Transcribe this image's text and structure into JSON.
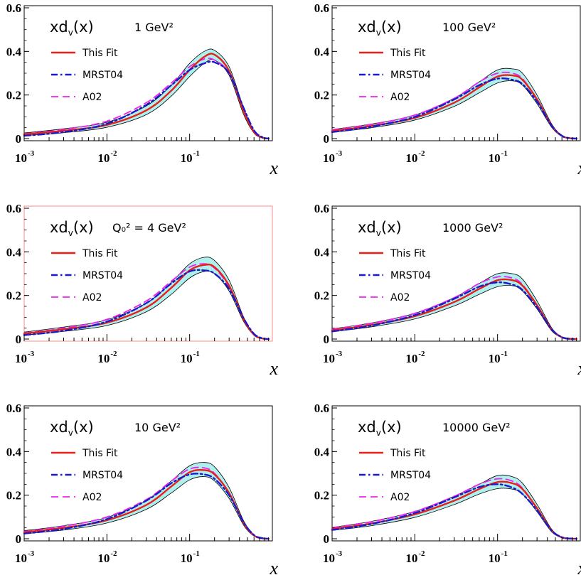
{
  "colors": {
    "this_fit": "#e8201a",
    "mrst04": "#1a1acc",
    "a02": "#ee22ee",
    "band_fill": "#aef0ee",
    "band_edge": "#000000",
    "frame": "#000000",
    "frame_highlight": "#ff8a8a"
  },
  "chart_data": [
    {
      "type": "line",
      "scale_label": "1 GeV²",
      "title": "xd_v(x)",
      "xlabel": "x",
      "xscale": "log",
      "xlim": [
        0.001,
        1.0
      ],
      "ylim": [
        0,
        0.6
      ],
      "y_ticks": [
        "0",
        "0.2",
        "0.4",
        "0.6"
      ],
      "x_ticks": [
        {
          "base": "10",
          "exp": "-3"
        },
        {
          "base": "10",
          "exp": "-2"
        },
        {
          "base": "10",
          "exp": "-1"
        }
      ],
      "legend": [
        "This Fit",
        "MRST04",
        "A02"
      ],
      "x": [
        0.001,
        0.003,
        0.01,
        0.03,
        0.06,
        0.1,
        0.15,
        0.2,
        0.3,
        0.45,
        0.6,
        0.75,
        0.9
      ],
      "series": [
        {
          "name": "This Fit",
          "values": [
            0.02,
            0.036,
            0.063,
            0.13,
            0.22,
            0.315,
            0.375,
            0.385,
            0.31,
            0.125,
            0.03,
            0.005,
            0.0
          ]
        },
        {
          "name": "MRST04",
          "values": [
            0.013,
            0.03,
            0.068,
            0.155,
            0.245,
            0.315,
            0.345,
            0.35,
            0.3,
            0.14,
            0.038,
            0.007,
            0.0
          ]
        },
        {
          "name": "A02",
          "values": [
            0.022,
            0.042,
            0.08,
            0.165,
            0.255,
            0.33,
            0.365,
            0.36,
            0.3,
            0.13,
            0.032,
            0.005,
            0.0
          ]
        }
      ],
      "band": {
        "upper": [
          0.026,
          0.045,
          0.075,
          0.15,
          0.245,
          0.345,
          0.4,
          0.405,
          0.33,
          0.14,
          0.035,
          0.006,
          0.0
        ],
        "lower": [
          0.014,
          0.027,
          0.052,
          0.11,
          0.195,
          0.285,
          0.345,
          0.36,
          0.29,
          0.11,
          0.025,
          0.004,
          0.0
        ]
      }
    },
    {
      "type": "line",
      "scale_label": "100 GeV²",
      "title": "xd_v(x)",
      "xlabel": "x",
      "xscale": "log",
      "xlim": [
        0.001,
        1.0
      ],
      "ylim": [
        0,
        0.6
      ],
      "y_ticks": [
        "0",
        "0.2",
        "0.4",
        "0.6"
      ],
      "x_ticks": [
        {
          "base": "10",
          "exp": "-3"
        },
        {
          "base": "10",
          "exp": "-2"
        },
        {
          "base": "10",
          "exp": "-1"
        }
      ],
      "legend": [
        "This Fit",
        "MRST04",
        "A02"
      ],
      "x": [
        0.001,
        0.003,
        0.01,
        0.03,
        0.06,
        0.1,
        0.15,
        0.2,
        0.3,
        0.45,
        0.6,
        0.75,
        0.9
      ],
      "series": [
        {
          "name": "This Fit",
          "values": [
            0.035,
            0.058,
            0.095,
            0.165,
            0.235,
            0.285,
            0.29,
            0.27,
            0.18,
            0.06,
            0.012,
            0.002,
            0.0
          ]
        },
        {
          "name": "MRST04",
          "values": [
            0.03,
            0.055,
            0.1,
            0.18,
            0.245,
            0.275,
            0.27,
            0.25,
            0.17,
            0.06,
            0.013,
            0.002,
            0.0
          ]
        },
        {
          "name": "A02",
          "values": [
            0.04,
            0.065,
            0.108,
            0.185,
            0.26,
            0.3,
            0.3,
            0.275,
            0.18,
            0.058,
            0.012,
            0.002,
            0.0
          ]
        }
      ],
      "band": {
        "upper": [
          0.042,
          0.067,
          0.108,
          0.185,
          0.26,
          0.315,
          0.32,
          0.3,
          0.2,
          0.068,
          0.014,
          0.003,
          0.0
        ],
        "lower": [
          0.028,
          0.05,
          0.085,
          0.148,
          0.21,
          0.255,
          0.265,
          0.245,
          0.16,
          0.052,
          0.01,
          0.002,
          0.0
        ]
      }
    },
    {
      "type": "line",
      "scale_label": "Q₀² = 4 GeV²",
      "title": "xd_v(x)",
      "xlabel": "x",
      "xscale": "log",
      "xlim": [
        0.001,
        1.0
      ],
      "ylim": [
        0,
        0.6
      ],
      "y_ticks": [
        "0",
        "0.2",
        "0.4",
        "0.6"
      ],
      "x_ticks": [
        {
          "base": "10",
          "exp": "-3"
        },
        {
          "base": "10",
          "exp": "-2"
        },
        {
          "base": "10",
          "exp": "-1"
        }
      ],
      "legend": [
        "This Fit",
        "MRST04",
        "A02"
      ],
      "x": [
        0.001,
        0.003,
        0.01,
        0.03,
        0.06,
        0.1,
        0.15,
        0.2,
        0.3,
        0.45,
        0.6,
        0.75,
        0.9
      ],
      "series": [
        {
          "name": "This Fit",
          "values": [
            0.025,
            0.045,
            0.075,
            0.145,
            0.235,
            0.315,
            0.34,
            0.33,
            0.245,
            0.09,
            0.02,
            0.003,
            0.0
          ]
        },
        {
          "name": "MRST04",
          "values": [
            0.018,
            0.038,
            0.08,
            0.165,
            0.255,
            0.31,
            0.315,
            0.3,
            0.23,
            0.095,
            0.024,
            0.004,
            0.0
          ]
        },
        {
          "name": "A02",
          "values": [
            0.027,
            0.05,
            0.09,
            0.175,
            0.265,
            0.33,
            0.345,
            0.325,
            0.24,
            0.09,
            0.02,
            0.003,
            0.0
          ]
        }
      ],
      "band": {
        "upper": [
          0.032,
          0.055,
          0.088,
          0.165,
          0.26,
          0.345,
          0.375,
          0.36,
          0.27,
          0.1,
          0.023,
          0.004,
          0.0
        ],
        "lower": [
          0.018,
          0.035,
          0.062,
          0.125,
          0.205,
          0.28,
          0.31,
          0.3,
          0.22,
          0.08,
          0.017,
          0.003,
          0.0
        ]
      }
    },
    {
      "type": "line",
      "scale_label": "1000 GeV²",
      "title": "xd_v(x)",
      "xlabel": "x",
      "xscale": "log",
      "xlim": [
        0.001,
        1.0
      ],
      "ylim": [
        0,
        0.6
      ],
      "y_ticks": [
        "0",
        "0.2",
        "0.4",
        "0.6"
      ],
      "x_ticks": [
        {
          "base": "10",
          "exp": "-3"
        },
        {
          "base": "10",
          "exp": "-2"
        },
        {
          "base": "10",
          "exp": "-1"
        }
      ],
      "legend": [
        "This Fit",
        "MRST04",
        "A02"
      ],
      "x": [
        0.001,
        0.003,
        0.01,
        0.03,
        0.06,
        0.1,
        0.15,
        0.2,
        0.3,
        0.45,
        0.6,
        0.75,
        0.9
      ],
      "series": [
        {
          "name": "This Fit",
          "values": [
            0.04,
            0.065,
            0.105,
            0.17,
            0.23,
            0.27,
            0.27,
            0.245,
            0.155,
            0.045,
            0.008,
            0.001,
            0.0
          ]
        },
        {
          "name": "MRST04",
          "values": [
            0.035,
            0.062,
            0.11,
            0.185,
            0.24,
            0.26,
            0.25,
            0.225,
            0.145,
            0.045,
            0.009,
            0.001,
            0.0
          ]
        },
        {
          "name": "A02",
          "values": [
            0.045,
            0.072,
            0.118,
            0.19,
            0.255,
            0.285,
            0.28,
            0.25,
            0.155,
            0.044,
            0.008,
            0.001,
            0.0
          ]
        }
      ],
      "band": {
        "upper": [
          0.047,
          0.074,
          0.118,
          0.19,
          0.255,
          0.3,
          0.3,
          0.275,
          0.175,
          0.052,
          0.01,
          0.002,
          0.0
        ],
        "lower": [
          0.033,
          0.056,
          0.092,
          0.152,
          0.205,
          0.24,
          0.245,
          0.22,
          0.138,
          0.038,
          0.007,
          0.001,
          0.0
        ]
      }
    },
    {
      "type": "line",
      "scale_label": "10 GeV²",
      "title": "xd_v(x)",
      "xlabel": "x",
      "xscale": "log",
      "xlim": [
        0.001,
        1.0
      ],
      "ylim": [
        0,
        0.6
      ],
      "y_ticks": [
        "0",
        "0.2",
        "0.4",
        "0.6"
      ],
      "x_ticks": [
        {
          "base": "10",
          "exp": "-3"
        },
        {
          "base": "10",
          "exp": "-2"
        },
        {
          "base": "10",
          "exp": "-1"
        }
      ],
      "legend": [
        "This Fit",
        "MRST04",
        "A02"
      ],
      "x": [
        0.001,
        0.003,
        0.01,
        0.03,
        0.06,
        0.1,
        0.15,
        0.2,
        0.3,
        0.45,
        0.6,
        0.75,
        0.9
      ],
      "series": [
        {
          "name": "This Fit",
          "values": [
            0.03,
            0.05,
            0.085,
            0.155,
            0.24,
            0.305,
            0.315,
            0.295,
            0.21,
            0.072,
            0.015,
            0.002,
            0.0
          ]
        },
        {
          "name": "MRST04",
          "values": [
            0.024,
            0.045,
            0.09,
            0.175,
            0.255,
            0.295,
            0.295,
            0.275,
            0.2,
            0.075,
            0.017,
            0.003,
            0.0
          ]
        },
        {
          "name": "A02",
          "values": [
            0.033,
            0.057,
            0.1,
            0.18,
            0.265,
            0.32,
            0.325,
            0.3,
            0.21,
            0.07,
            0.015,
            0.002,
            0.0
          ]
        }
      ],
      "band": {
        "upper": [
          0.037,
          0.06,
          0.098,
          0.175,
          0.265,
          0.335,
          0.35,
          0.33,
          0.235,
          0.082,
          0.018,
          0.003,
          0.0
        ],
        "lower": [
          0.023,
          0.04,
          0.072,
          0.135,
          0.21,
          0.27,
          0.285,
          0.265,
          0.185,
          0.062,
          0.012,
          0.002,
          0.0
        ]
      }
    },
    {
      "type": "line",
      "scale_label": "10000 GeV²",
      "title": "xd_v(x)",
      "xlabel": "x",
      "xscale": "log",
      "xlim": [
        0.001,
        1.0
      ],
      "ylim": [
        0,
        0.6
      ],
      "y_ticks": [
        "0",
        "0.2",
        "0.4",
        "0.6"
      ],
      "x_ticks": [
        {
          "base": "10",
          "exp": "-3"
        },
        {
          "base": "10",
          "exp": "-2"
        },
        {
          "base": "10",
          "exp": "-1"
        }
      ],
      "legend": [
        "This Fit",
        "MRST04",
        "A02"
      ],
      "x": [
        0.001,
        0.003,
        0.01,
        0.03,
        0.06,
        0.1,
        0.15,
        0.2,
        0.3,
        0.45,
        0.6,
        0.75,
        0.9
      ],
      "series": [
        {
          "name": "This Fit",
          "values": [
            0.045,
            0.07,
            0.112,
            0.175,
            0.228,
            0.26,
            0.255,
            0.228,
            0.14,
            0.038,
            0.006,
            0.001,
            0.0
          ]
        },
        {
          "name": "MRST04",
          "values": [
            0.04,
            0.068,
            0.118,
            0.19,
            0.237,
            0.25,
            0.235,
            0.205,
            0.13,
            0.038,
            0.007,
            0.001,
            0.0
          ]
        },
        {
          "name": "A02",
          "values": [
            0.05,
            0.078,
            0.125,
            0.195,
            0.25,
            0.275,
            0.265,
            0.232,
            0.14,
            0.037,
            0.006,
            0.001,
            0.0
          ]
        }
      ],
      "band": {
        "upper": [
          0.052,
          0.08,
          0.125,
          0.195,
          0.25,
          0.29,
          0.285,
          0.255,
          0.158,
          0.044,
          0.008,
          0.001,
          0.0
        ],
        "lower": [
          0.038,
          0.06,
          0.098,
          0.157,
          0.205,
          0.23,
          0.228,
          0.205,
          0.124,
          0.032,
          0.005,
          0.001,
          0.0
        ]
      }
    }
  ]
}
